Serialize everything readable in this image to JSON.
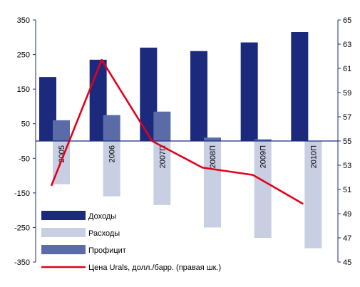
{
  "chart_data": {
    "type": "bar",
    "categories": [
      "2005",
      "2006",
      "2007П",
      "2008П",
      "2009П",
      "2010П"
    ],
    "series": [
      {
        "name": "Доходы",
        "kind": "bar",
        "axis": "left",
        "color": "#1c2a7e",
        "values": [
          185,
          235,
          270,
          260,
          285,
          315
        ]
      },
      {
        "name": "Расходы",
        "kind": "bar",
        "axis": "left",
        "color": "#c8cfe2",
        "values": [
          -125,
          -160,
          -185,
          -250,
          -280,
          -310
        ]
      },
      {
        "name": "Профицит",
        "kind": "bar",
        "axis": "left",
        "color": "#5a6ba8",
        "values": [
          60,
          75,
          85,
          10,
          5,
          0
        ]
      },
      {
        "name": "Цена Urals, долл./барр. (правая шк.)",
        "kind": "line",
        "axis": "right",
        "color": "#e3001b",
        "values": [
          51.3,
          61.7,
          55,
          52.8,
          52.2,
          49.8
        ]
      }
    ],
    "y_left": {
      "ylim": [
        -350,
        350
      ],
      "ticks": [
        350,
        250,
        150,
        50,
        -50,
        -150,
        -250,
        -350
      ]
    },
    "y_right": {
      "ylim": [
        45,
        65
      ],
      "ticks": [
        65,
        63,
        61,
        59,
        57,
        55,
        53,
        51,
        49,
        47,
        45
      ]
    },
    "legend": {
      "position": "bottom-left"
    },
    "grid": false
  }
}
